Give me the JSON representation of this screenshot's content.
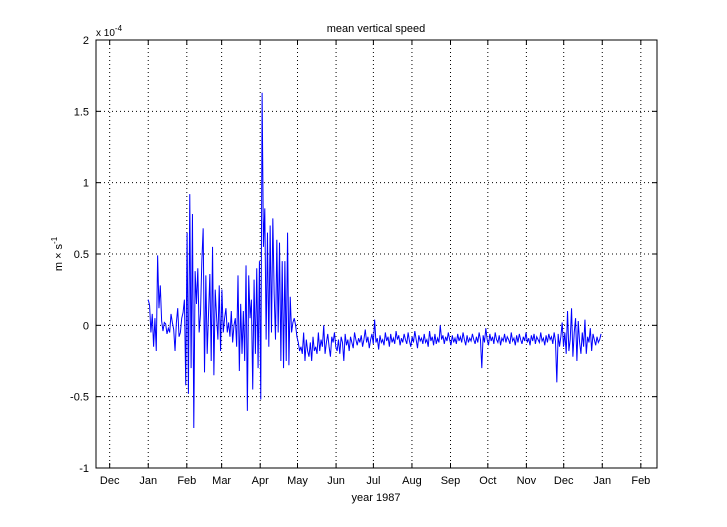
{
  "chart_data": {
    "type": "line",
    "title": "mean vertical speed",
    "xlabel": "year 1987",
    "ylabel": "m × s",
    "ylabel_superscript": "-1",
    "y_multiplier": "x 10",
    "y_multiplier_exponent": "-4",
    "x_tick_labels": [
      "Dec",
      "Jan",
      "Feb",
      "Mar",
      "Apr",
      "May",
      "Jun",
      "Jul",
      "Aug",
      "Sep",
      "Oct",
      "Nov",
      "Dec",
      "Jan",
      "Feb"
    ],
    "x_tick_dates": [
      "1986-12-01",
      "1987-01-01",
      "1987-02-01",
      "1987-03-01",
      "1987-04-01",
      "1987-05-01",
      "1987-06-01",
      "1987-07-01",
      "1987-08-01",
      "1987-09-01",
      "1987-10-01",
      "1987-11-01",
      "1987-12-01",
      "1988-01-01",
      "1988-02-01"
    ],
    "x_range": [
      "1986-11-20",
      "1988-02-14"
    ],
    "y_tick_labels": [
      "-1",
      "-0.5",
      "0",
      "0.5",
      "1",
      "1.5",
      "2"
    ],
    "ylim": [
      -1,
      2
    ],
    "grid": true,
    "grid_style": "dotted",
    "line_color": "#0000ff",
    "series": [
      {
        "x_start": "1987-01-01",
        "x_end": "1987-12-31",
        "values": [
          0.18,
          0.14,
          -0.05,
          0.08,
          -0.15,
          0.05,
          -0.18,
          0.49,
          0.12,
          0.28,
          0.03,
          -0.04,
          0.02,
          0.01,
          -0.06,
          -0.02,
          -0.05,
          0.08,
          0.02,
          -0.03,
          -0.18,
          0.02,
          0.12,
          -0.08,
          -0.05,
          0.05,
          0.09,
          0.18,
          -0.42,
          0.65,
          -0.48,
          0.92,
          -0.3,
          0.78,
          -0.72,
          0.38,
          0.15,
          0.4,
          -0.05,
          0.08,
          0.45,
          0.68,
          -0.33,
          0.35,
          -0.2,
          0.08,
          0.36,
          -0.25,
          0.55,
          -0.35,
          0.25,
          0.06,
          -0.1,
          0.28,
          -0.18,
          0.25,
          -0.05,
          0.05,
          0.12,
          -0.05,
          0.02,
          -0.08,
          0.1,
          -0.12,
          0.0,
          0.05,
          -0.15,
          0.35,
          -0.32,
          0.15,
          -0.2,
          0.1,
          -0.25,
          0.42,
          -0.6,
          0.35,
          0.05,
          0.18,
          -0.45,
          0.32,
          -0.2,
          0.4,
          -0.3,
          0.45,
          -0.52,
          1.63,
          0.55,
          0.82,
          -0.1,
          0.65,
          -0.15,
          0.7,
          -0.05,
          0.75,
          0.22,
          -0.1,
          0.6,
          -0.05,
          0.58,
          -0.25,
          0.45,
          -0.3,
          0.45,
          -0.25,
          0.65,
          -0.28,
          0.2,
          -0.05,
          0.02,
          0.05,
          0.0,
          -0.08,
          -0.12,
          -0.18,
          -0.15,
          -0.2,
          -0.05,
          -0.25,
          -0.1,
          -0.18,
          -0.22,
          -0.12,
          -0.25,
          -0.08,
          -0.18,
          -0.15,
          -0.2,
          -0.05,
          -0.18,
          -0.1,
          -0.15,
          0.0,
          -0.2,
          -0.12,
          -0.06,
          -0.15,
          -0.22,
          -0.08,
          -0.12,
          -0.05,
          -0.15,
          -0.18,
          -0.1,
          -0.2,
          -0.08,
          -0.12,
          -0.25,
          -0.06,
          -0.14,
          -0.1,
          -0.18,
          -0.08,
          -0.12,
          -0.16,
          -0.05,
          -0.1,
          -0.14,
          -0.09,
          -0.12,
          -0.07,
          -0.15,
          -0.1,
          -0.03,
          -0.12,
          -0.08,
          -0.16,
          -0.1,
          -0.06,
          -0.13,
          0.04,
          -0.12,
          -0.09,
          -0.17,
          -0.07,
          -0.12,
          -0.1,
          -0.14,
          -0.05,
          -0.11,
          -0.08,
          -0.15,
          -0.06,
          -0.12,
          -0.09,
          -0.13,
          -0.04,
          -0.1,
          -0.07,
          -0.14,
          -0.09,
          -0.12,
          -0.06,
          -0.1,
          -0.13,
          -0.05,
          -0.11,
          -0.15,
          -0.08,
          -0.12,
          -0.04,
          -0.1,
          -0.16,
          -0.07,
          -0.11,
          -0.09,
          -0.13,
          -0.06,
          -0.12,
          -0.1,
          -0.15,
          -0.04,
          -0.11,
          -0.08,
          -0.14,
          -0.06,
          -0.13,
          -0.09,
          -0.12,
          0.0,
          -0.1,
          -0.07,
          -0.13,
          -0.08,
          -0.11,
          -0.05,
          -0.1,
          -0.14,
          -0.07,
          -0.12,
          -0.09,
          -0.13,
          -0.06,
          -0.11,
          -0.08,
          -0.12,
          -0.05,
          -0.1,
          -0.14,
          -0.07,
          -0.12,
          -0.09,
          -0.11,
          -0.06,
          -0.1,
          -0.13,
          -0.08,
          -0.12,
          -0.05,
          -0.1,
          -0.3,
          -0.07,
          -0.12,
          -0.02,
          -0.1,
          -0.14,
          -0.06,
          -0.11,
          -0.08,
          -0.13,
          -0.05,
          -0.1,
          -0.12,
          -0.07,
          -0.14,
          -0.09,
          -0.11,
          -0.06,
          -0.12,
          -0.08,
          -0.1,
          -0.13,
          -0.05,
          -0.11,
          -0.09,
          -0.14,
          -0.07,
          -0.12,
          -0.06,
          -0.1,
          -0.13,
          -0.08,
          -0.11,
          -0.05,
          -0.12,
          -0.09,
          -0.14,
          -0.07,
          -0.11,
          -0.06,
          -0.13,
          -0.08,
          -0.1,
          -0.12,
          -0.05,
          -0.11,
          -0.09,
          -0.14,
          -0.07,
          -0.12,
          -0.06,
          -0.1,
          -0.08,
          -0.13,
          -0.05,
          -0.11,
          -0.4,
          -0.06,
          -0.15,
          -0.08,
          0.02,
          -0.15,
          -0.05,
          -0.2,
          0.1,
          -0.18,
          -0.1,
          0.12,
          -0.22,
          -0.05,
          0.05,
          -0.25,
          0.03,
          -0.12,
          -0.2,
          -0.05,
          -0.15,
          0.04,
          -0.2,
          -0.08,
          -0.12,
          -0.02,
          -0.18,
          -0.06,
          -0.1,
          -0.14,
          -0.08,
          -0.12,
          -0.1,
          -0.06
        ]
      }
    ]
  }
}
